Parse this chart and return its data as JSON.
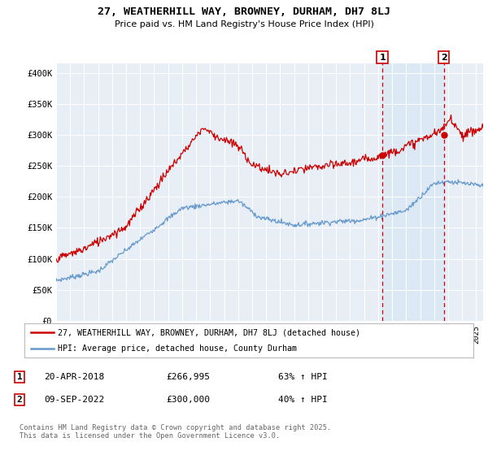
{
  "title_line1": "27, WEATHERHILL WAY, BROWNEY, DURHAM, DH7 8LJ",
  "title_line2": "Price paid vs. HM Land Registry's House Price Index (HPI)",
  "ylabel_ticks": [
    "£0",
    "£50K",
    "£100K",
    "£150K",
    "£200K",
    "£250K",
    "£300K",
    "£350K",
    "£400K"
  ],
  "ylim": [
    0,
    415000
  ],
  "xlim_start": 1995,
  "xlim_end": 2025.5,
  "red_color": "#cc0000",
  "blue_color": "#6699cc",
  "highlight_color": "#dce9f5",
  "marker1_date": 2018.3,
  "marker1_price": 266995,
  "marker2_date": 2022.69,
  "marker2_price": 300000,
  "legend_label_red": "27, WEATHERHILL WAY, BROWNEY, DURHAM, DH7 8LJ (detached house)",
  "legend_label_blue": "HPI: Average price, detached house, County Durham",
  "annotation1_date": "20-APR-2018",
  "annotation1_price": "£266,995",
  "annotation1_hpi": "63% ↑ HPI",
  "annotation2_date": "09-SEP-2022",
  "annotation2_price": "£300,000",
  "annotation2_hpi": "40% ↑ HPI",
  "footer_text": "Contains HM Land Registry data © Crown copyright and database right 2025.\nThis data is licensed under the Open Government Licence v3.0.",
  "background_color": "#e8eef5"
}
